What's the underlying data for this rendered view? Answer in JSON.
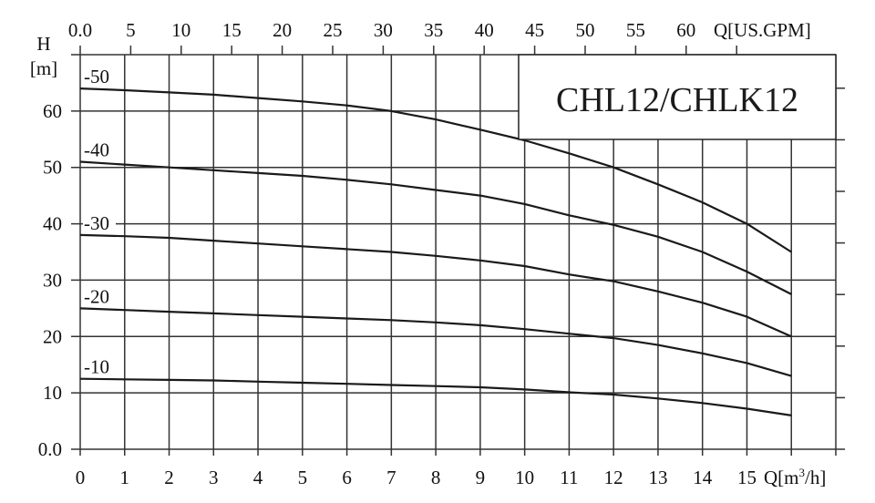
{
  "chart_data": {
    "type": "line",
    "title": "CHL12/CHLK12",
    "xlabel": "Q[m³/h]",
    "x2label": "Q[US.GPM]",
    "ylabel_top": "H",
    "ylabel_unit": "[m]",
    "xlim": [
      0,
      17
    ],
    "ylim": [
      0,
      70
    ],
    "x2lim": [
      0,
      75.9
    ],
    "grid": true,
    "x_ticks": [
      "0",
      "1",
      "2",
      "3",
      "4",
      "5",
      "6",
      "7",
      "8",
      "9",
      "10",
      "11",
      "12",
      "13",
      "14",
      "15"
    ],
    "x2_ticks": [
      "0.0",
      "5",
      "10",
      "15",
      "20",
      "25",
      "30",
      "35",
      "40",
      "45",
      "50",
      "55",
      "60"
    ],
    "y_ticks": [
      "0.0",
      "10",
      "20",
      "30",
      "40",
      "50",
      "60"
    ],
    "colors": {
      "line": "#1a1a1a",
      "grid": "#333333"
    },
    "x": [
      0,
      1,
      2,
      3,
      4,
      5,
      6,
      7,
      8,
      9,
      10,
      11,
      12,
      13,
      14,
      15,
      16
    ],
    "series": [
      {
        "name": "-50",
        "values": [
          64,
          63.7,
          63.3,
          62.9,
          62.3,
          61.7,
          61,
          60,
          58.5,
          56.7,
          54.8,
          52.5,
          50,
          47,
          43.8,
          40,
          35
        ]
      },
      {
        "name": "-40",
        "values": [
          51,
          50.5,
          50,
          49.5,
          49,
          48.5,
          47.8,
          47,
          46,
          45,
          43.5,
          41.5,
          39.8,
          37.7,
          35,
          31.5,
          27.5
        ]
      },
      {
        "name": "-30",
        "values": [
          38,
          37.8,
          37.5,
          37,
          36.5,
          36,
          35.5,
          35,
          34.3,
          33.5,
          32.5,
          31,
          29.8,
          28,
          26,
          23.5,
          20
        ]
      },
      {
        "name": "-20",
        "values": [
          25,
          24.7,
          24.4,
          24.1,
          23.8,
          23.5,
          23.2,
          22.9,
          22.5,
          22,
          21.3,
          20.5,
          19.7,
          18.5,
          17,
          15.3,
          13
        ]
      },
      {
        "name": "-10",
        "values": [
          12.5,
          12.4,
          12.3,
          12.2,
          12,
          11.8,
          11.6,
          11.4,
          11.2,
          11,
          10.6,
          10.1,
          9.7,
          9,
          8.2,
          7.2,
          6
        ]
      }
    ]
  }
}
